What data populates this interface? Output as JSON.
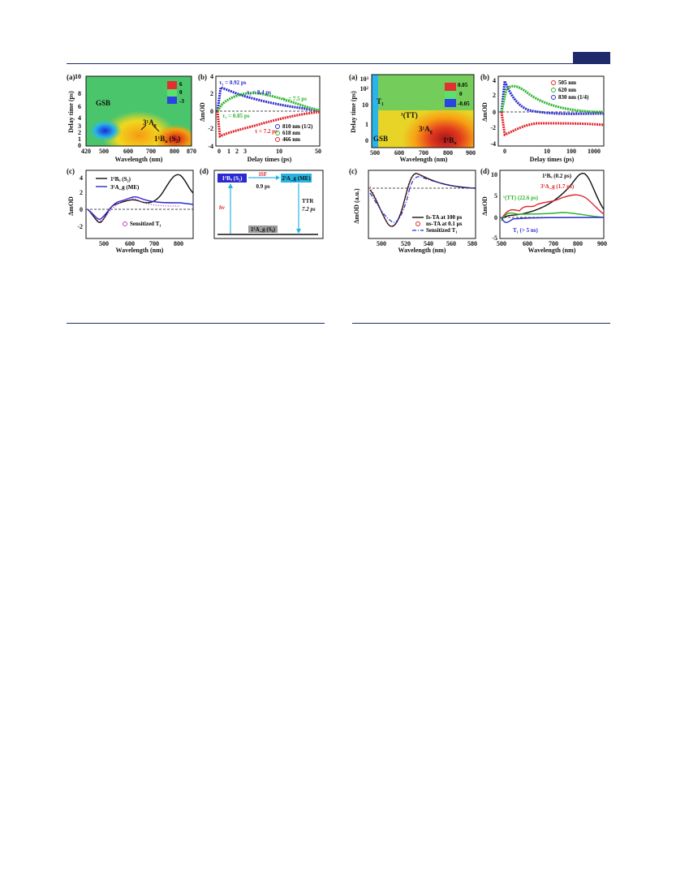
{
  "colors": {
    "rule": "#1f2a6b",
    "red": "#e0242a",
    "green": "#2bb52b",
    "blue": "#2a2ad0",
    "black": "#111111",
    "magenta": "#c43cc4",
    "cyan": "#27b3e3"
  },
  "left_figure": {
    "a": {
      "panel_label": "(a)",
      "ylabel": "Delay time (ps)",
      "xlabel": "Wavelength (nm)",
      "xticks": [
        "420",
        "500",
        "600",
        "700",
        "800",
        "870"
      ],
      "yticks": [
        "0",
        "1",
        "2",
        "3",
        "4",
        "6",
        "8",
        "10"
      ],
      "cbar_ticks": [
        "6",
        "0",
        "-3"
      ],
      "annotations": {
        "gsb": "GSB",
        "ag": "3¹A",
        "ag_sub": "g",
        "bu": "1¹B",
        "bu_sub": "u",
        "bu_tail": "(S₂)"
      }
    },
    "b": {
      "panel_label": "(b)",
      "ylabel": "ΔmOD",
      "xlabel": "Delay times (ps)",
      "xticks": [
        "0",
        "1",
        "2",
        "3",
        "10",
        "50"
      ],
      "yticks": [
        "4",
        "2",
        "0",
        "-2",
        "-4"
      ],
      "fits": {
        "t1_blue": "τ₁ = 0.92 ps",
        "t2_blue": "τ₂ = 8.4 ps",
        "t2_green": "τ₂ = 7.5 ps",
        "t1_green": "τ₁ = 0.85 ps",
        "t_red": "τ = 7.2 ps"
      },
      "legend": [
        "810 nm (1/2)",
        "618 nm",
        "466 nm"
      ]
    },
    "c": {
      "panel_label": "(c)",
      "ylabel": "ΔmOD",
      "xlabel": "Wavelength (nm)",
      "xticks": [
        "500",
        "600",
        "700",
        "800"
      ],
      "yticks": [
        "4",
        "2",
        "0",
        "-2"
      ],
      "legend": [
        "1¹Bᵤ (S₂)",
        "3¹A_g (ME)"
      ],
      "sensitized": "Sensitized T₁"
    },
    "d": {
      "panel_label": "(d)",
      "s2": "1¹Bᵤ (S₂)",
      "me": "2¹A_g (ME)",
      "isf": "iSF",
      "isf_time": "0.9 ps",
      "hv": "hv",
      "ttr": "TTR",
      "ttr_time": "7.2 ps",
      "ground": "1¹A_g (S₀)"
    }
  },
  "right_figure": {
    "a": {
      "panel_label": "(a)",
      "ylabel": "Delay time (ps)",
      "xlabel": "Wavelength (nm)",
      "xticks": [
        "500",
        "600",
        "700",
        "800",
        "900"
      ],
      "yticks": [
        "10³",
        "10²",
        "10",
        "1",
        "0"
      ],
      "cbar_ticks": [
        "0.05",
        "0",
        "-0.05"
      ],
      "annotations": {
        "t1": "T₁",
        "tt": "¹(TT)",
        "gsb": "GSB",
        "ag": "3¹A",
        "ag_sub": "g",
        "bu": "1¹B",
        "bu_sub": "u"
      }
    },
    "b": {
      "panel_label": "(b)",
      "ylabel": "ΔmOD",
      "xlabel": "Delay times (ps)",
      "xticks": [
        "0",
        "10",
        "100",
        "1000"
      ],
      "yticks": [
        "4",
        "2",
        "0",
        "-2",
        "-4"
      ],
      "legend": [
        "505 nm",
        "620 nm",
        "830 nm (1/4)"
      ]
    },
    "c": {
      "panel_label": "(c)",
      "ylabel": "ΔmOD (a.u.)",
      "xlabel": "Wavelength (nm)",
      "xticks": [
        "500",
        "520",
        "540",
        "560",
        "580"
      ],
      "legend": [
        "fs-TA at 100 ps",
        "ns-TA at 0.1 μs",
        "Sensitized T₁"
      ]
    },
    "d": {
      "panel_label": "(d)",
      "ylabel": "ΔmOD",
      "xlabel": "Wavelength (nm)",
      "xticks": [
        "500",
        "600",
        "700",
        "800",
        "900"
      ],
      "yticks": [
        "10",
        "5",
        "0",
        "-5"
      ],
      "labels": [
        "1¹Bᵤ (0.2 ps)",
        "3¹A_g (1.7 ps)",
        "¹(TT) (22.6 ps)",
        "T₁ (> 5 ns)"
      ]
    }
  }
}
